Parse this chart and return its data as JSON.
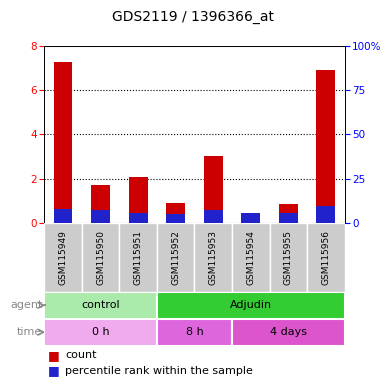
{
  "title": "GDS2119 / 1396366_at",
  "samples": [
    "GSM115949",
    "GSM115950",
    "GSM115951",
    "GSM115952",
    "GSM115953",
    "GSM115954",
    "GSM115955",
    "GSM115956"
  ],
  "count_values": [
    7.3,
    1.7,
    2.05,
    0.9,
    3.0,
    0.35,
    0.85,
    6.9
  ],
  "percentile_values": [
    8.0,
    7.0,
    5.5,
    5.0,
    7.0,
    5.5,
    5.5,
    9.5
  ],
  "ylim_left": [
    0,
    8
  ],
  "ylim_right": [
    0,
    100
  ],
  "yticks_left": [
    0,
    2,
    4,
    6,
    8
  ],
  "yticks_right": [
    0,
    25,
    50,
    75,
    100
  ],
  "yticklabels_right": [
    "0",
    "25",
    "50",
    "75",
    "100%"
  ],
  "bar_color_red": "#cc0000",
  "bar_color_blue": "#2222cc",
  "agent_groups": [
    {
      "label": "control",
      "start": 0,
      "end": 3,
      "color": "#aaeaaa"
    },
    {
      "label": "Adjudin",
      "start": 3,
      "end": 8,
      "color": "#33cc33"
    }
  ],
  "time_groups": [
    {
      "label": "0 h",
      "start": 0,
      "end": 3,
      "color": "#f0aaee"
    },
    {
      "label": "8 h",
      "start": 3,
      "end": 5,
      "color": "#dd66dd"
    },
    {
      "label": "4 days",
      "start": 5,
      "end": 8,
      "color": "#dd55cc"
    }
  ],
  "legend_count_label": "count",
  "legend_percentile_label": "percentile rank within the sample",
  "bar_width": 0.5,
  "title_fontsize": 10,
  "tick_fontsize": 7.5,
  "sample_fontsize": 6.5,
  "row_fontsize": 8,
  "legend_fontsize": 8
}
